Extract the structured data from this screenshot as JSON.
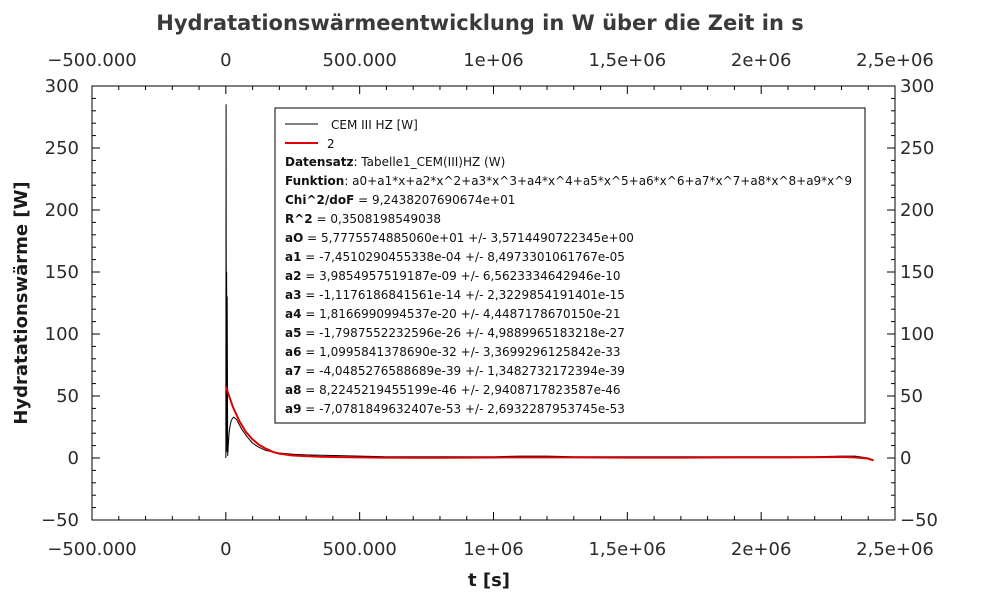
{
  "chart_data": {
    "type": "line",
    "title": "Hydratationswärmeentwicklung in W über die Zeit in s",
    "xlabel": "t [s]",
    "ylabel": "Hydratationswärme [W]",
    "xlim": [
      -500000,
      2500000
    ],
    "ylim": [
      -50,
      300
    ],
    "x_ticks": [
      -500000,
      0,
      500000,
      1000000,
      1500000,
      2000000,
      2500000
    ],
    "x_tick_labels": [
      "−500.000",
      "0",
      "500.000",
      "1e+06",
      "1,5e+06",
      "2e+06",
      "2,5e+06"
    ],
    "y_ticks": [
      -50,
      0,
      50,
      100,
      150,
      200,
      250,
      300
    ],
    "y_tick_labels": [
      "−50",
      "0",
      "50",
      "100",
      "150",
      "200",
      "250",
      "300"
    ],
    "grid": false,
    "legend_position": "top-right",
    "series": [
      {
        "name": "CEM III HZ [W]",
        "color": "#000000",
        "x": [
          0,
          1000,
          2000,
          3000,
          4000,
          5000,
          7000,
          9000,
          12000,
          15000,
          20000,
          25000,
          30000,
          40000,
          50000,
          60000,
          80000,
          100000,
          120000,
          150000,
          200000,
          250000,
          300000,
          400000,
          500000,
          600000,
          700000,
          800000,
          900000,
          1000000,
          1100000,
          1200000,
          1300000,
          1400000,
          1500000,
          1600000,
          1700000,
          1800000,
          1900000,
          2000000,
          2100000,
          2200000,
          2300000,
          2350000,
          2400000,
          2420000
        ],
        "y": [
          0,
          285,
          20,
          150,
          5,
          130,
          2,
          10,
          20,
          25,
          30,
          32,
          33,
          31,
          27,
          23,
          17,
          12,
          9,
          6,
          4,
          3,
          2.5,
          2,
          1.5,
          1,
          1,
          1,
          1,
          1,
          1.5,
          1.5,
          1,
          1,
          1,
          1,
          1,
          1,
          1,
          1,
          1,
          1,
          1.5,
          1.5,
          0,
          -2
        ]
      },
      {
        "name": "2",
        "color": "#e00000",
        "x": [
          0,
          25000,
          50000,
          75000,
          100000,
          125000,
          150000,
          175000,
          200000,
          250000,
          300000,
          350000,
          400000,
          500000,
          600000,
          700000,
          800000,
          900000,
          1000000,
          1100000,
          1200000,
          1300000,
          1400000,
          1500000,
          1600000,
          1700000,
          1800000,
          1900000,
          2000000,
          2100000,
          2200000,
          2300000,
          2350000,
          2400000,
          2420000
        ],
        "y": [
          58,
          42,
          30,
          21,
          15,
          10.5,
          7.5,
          5,
          3.5,
          2,
          1.5,
          1,
          0.8,
          0.5,
          0.3,
          0.2,
          0.2,
          0.3,
          0.4,
          0.5,
          0.5,
          0.5,
          0.4,
          0.3,
          0.3,
          0.3,
          0.4,
          0.5,
          0.5,
          0.5,
          0.6,
          0.8,
          0.5,
          -0.5,
          -2
        ]
      }
    ],
    "fit_info": [
      {
        "key": "Datensatz",
        "value": ": Tabelle1_CEM(III)HZ (W)"
      },
      {
        "key": "Funktion",
        "value": ": a0+a1*x+a2*x^2+a3*x^3+a4*x^4+a5*x^5+a6*x^6+a7*x^7+a8*x^8+a9*x^9"
      },
      {
        "key": "Chi^2/doF",
        "value": " = 9,2438207690674e+01"
      },
      {
        "key": "R^2",
        "value": " = 0,3508198549038"
      },
      {
        "key": "aO",
        "value": " = 5,7775574885060e+01 +/- 3,5714490722345e+00"
      },
      {
        "key": "a1",
        "value": " = -7,4510290455338e-04 +/- 8,4973301061767e-05"
      },
      {
        "key": "a2",
        "value": " = 3,9854957519187e-09 +/- 6,5623334642946e-10"
      },
      {
        "key": "a3",
        "value": " = -1,1176186841561e-14 +/- 2,3229854191401e-15"
      },
      {
        "key": "a4",
        "value": " = 1,8166990994537e-20 +/- 4,4487178670150e-21"
      },
      {
        "key": "a5",
        "value": " = -1,7987552232596e-26 +/- 4,9889965183218e-27"
      },
      {
        "key": "a6",
        "value": " = 1,0995841378690e-32 +/- 3,3699296125842e-33"
      },
      {
        "key": "a7",
        "value": " = -4,0485276588689e-39 +/- 1,3482732172394e-39"
      },
      {
        "key": "a8",
        "value": " = 8,2245219455199e-46 +/- 2,9408717823587e-46"
      },
      {
        "key": "a9",
        "value": " = -7,0781849632407e-53 +/- 2,6932287953745e-53"
      }
    ]
  }
}
